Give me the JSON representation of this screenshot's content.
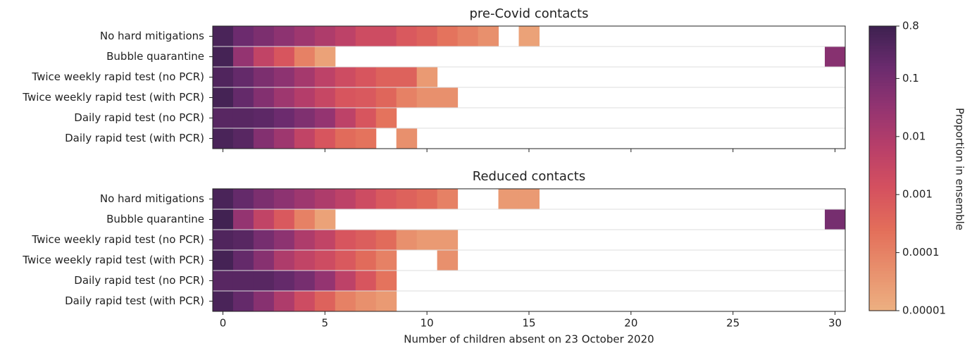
{
  "chart_data": [
    {
      "type": "heatmap",
      "title": "pre-Covid contacts",
      "categories": [
        "No hard mitigations",
        "Bubble quarantine",
        "Twice weekly rapid test (no PCR)",
        "Twice weekly rapid test (with PCR)",
        "Daily rapid test (no PCR)",
        "Daily rapid test (with PCR)"
      ],
      "x": [
        0,
        1,
        2,
        3,
        4,
        5,
        6,
        7,
        8,
        9,
        10,
        11,
        12,
        13,
        14,
        15,
        16,
        17,
        18,
        19,
        20,
        21,
        22,
        23,
        24,
        25,
        26,
        27,
        28,
        29,
        30
      ],
      "xlim": [
        -0.5,
        30.5
      ],
      "xticks": [
        0,
        5,
        10,
        15,
        20,
        25,
        30
      ],
      "z": [
        [
          0.5,
          0.15,
          0.08,
          0.04,
          0.02,
          0.01,
          0.005,
          0.002,
          0.002,
          0.0008,
          0.0005,
          0.0002,
          0.0001,
          5e-05,
          null,
          2e-05,
          null,
          null,
          null,
          null,
          null,
          null,
          null,
          null,
          null,
          null,
          null,
          null,
          null,
          null,
          null
        ],
        [
          0.6,
          0.03,
          0.004,
          0.001,
          0.0001,
          2e-05,
          null,
          null,
          null,
          null,
          null,
          null,
          null,
          null,
          null,
          null,
          null,
          null,
          null,
          null,
          null,
          null,
          null,
          null,
          null,
          null,
          null,
          null,
          null,
          null,
          0.05
        ],
        [
          0.4,
          0.2,
          0.08,
          0.04,
          0.015,
          0.005,
          0.002,
          0.001,
          0.0005,
          0.0005,
          3e-05,
          null,
          null,
          null,
          null,
          null,
          null,
          null,
          null,
          null,
          null,
          null,
          null,
          null,
          null,
          null,
          null,
          null,
          null,
          null,
          null
        ],
        [
          0.6,
          0.2,
          0.06,
          0.02,
          0.008,
          0.003,
          0.001,
          0.0008,
          0.0004,
          0.0001,
          5e-05,
          5e-05,
          null,
          null,
          null,
          null,
          null,
          null,
          null,
          null,
          null,
          null,
          null,
          null,
          null,
          null,
          null,
          null,
          null,
          null,
          null
        ],
        [
          0.3,
          0.3,
          0.25,
          0.15,
          0.07,
          0.03,
          0.005,
          0.001,
          0.0002,
          null,
          null,
          null,
          null,
          null,
          null,
          null,
          null,
          null,
          null,
          null,
          null,
          null,
          null,
          null,
          null,
          null,
          null,
          null,
          null,
          null,
          null
        ],
        [
          0.5,
          0.3,
          0.06,
          0.02,
          0.004,
          0.001,
          0.0003,
          0.0002,
          null,
          5e-05,
          null,
          null,
          null,
          null,
          null,
          null,
          null,
          null,
          null,
          null,
          null,
          null,
          null,
          null,
          null,
          null,
          null,
          null,
          null,
          null,
          null
        ]
      ],
      "colorbar": {
        "label": "Proportion in ensemble",
        "clim": [
          1e-05,
          0.8
        ],
        "log": true,
        "ticks": [
          0.8,
          0.1,
          0.01,
          0.001,
          0.0001,
          1e-05
        ],
        "colormap": [
          "#edb081",
          "#e8906d",
          "#e36e5a",
          "#d5515f",
          "#b93f69",
          "#933471",
          "#6a2b6e",
          "#3d2150"
        ]
      }
    },
    {
      "type": "heatmap",
      "title": "Reduced contacts",
      "categories": [
        "No hard mitigations",
        "Bubble quarantine",
        "Twice weekly rapid test (no PCR)",
        "Twice weekly rapid test (with PCR)",
        "Daily rapid test (no PCR)",
        "Daily rapid test (with PCR)"
      ],
      "x": [
        0,
        1,
        2,
        3,
        4,
        5,
        6,
        7,
        8,
        9,
        10,
        11,
        12,
        13,
        14,
        15,
        16,
        17,
        18,
        19,
        20,
        21,
        22,
        23,
        24,
        25,
        26,
        27,
        28,
        29,
        30
      ],
      "xlim": [
        -0.5,
        30.5
      ],
      "xticks": [
        0,
        5,
        10,
        15,
        20,
        25,
        30
      ],
      "xlabel": "Number of children absent on 23 October 2020",
      "z": [
        [
          0.5,
          0.2,
          0.08,
          0.04,
          0.02,
          0.01,
          0.005,
          0.002,
          0.0008,
          0.0005,
          0.0003,
          0.0001,
          null,
          null,
          3e-05,
          3e-05,
          null,
          null,
          null,
          null,
          null,
          null,
          null,
          null,
          null,
          null,
          null,
          null,
          null,
          null,
          null
        ],
        [
          0.7,
          0.03,
          0.004,
          0.0008,
          0.0001,
          2e-05,
          null,
          null,
          null,
          null,
          null,
          null,
          null,
          null,
          null,
          null,
          null,
          null,
          null,
          null,
          null,
          null,
          null,
          null,
          null,
          null,
          null,
          null,
          null,
          null,
          0.1
        ],
        [
          0.4,
          0.3,
          0.1,
          0.04,
          0.01,
          0.004,
          0.001,
          0.0006,
          0.0003,
          5e-05,
          3e-05,
          3e-05,
          null,
          null,
          null,
          null,
          null,
          null,
          null,
          null,
          null,
          null,
          null,
          null,
          null,
          null,
          null,
          null,
          null,
          null,
          null
        ],
        [
          0.6,
          0.2,
          0.05,
          0.01,
          0.004,
          0.002,
          0.0008,
          0.0003,
          0.0001,
          null,
          null,
          5e-05,
          null,
          null,
          null,
          null,
          null,
          null,
          null,
          null,
          null,
          null,
          null,
          null,
          null,
          null,
          null,
          null,
          null,
          null,
          null
        ],
        [
          0.3,
          0.3,
          0.3,
          0.2,
          0.1,
          0.03,
          0.005,
          0.001,
          0.0002,
          null,
          null,
          null,
          null,
          null,
          null,
          null,
          null,
          null,
          null,
          null,
          null,
          null,
          null,
          null,
          null,
          null,
          null,
          null,
          null,
          null,
          null
        ],
        [
          0.5,
          0.2,
          0.05,
          0.01,
          0.002,
          0.0005,
          0.0001,
          5e-05,
          3e-05,
          null,
          null,
          null,
          null,
          null,
          null,
          null,
          null,
          null,
          null,
          null,
          null,
          null,
          null,
          null,
          null,
          null,
          null,
          null,
          null,
          null,
          null
        ]
      ]
    }
  ]
}
